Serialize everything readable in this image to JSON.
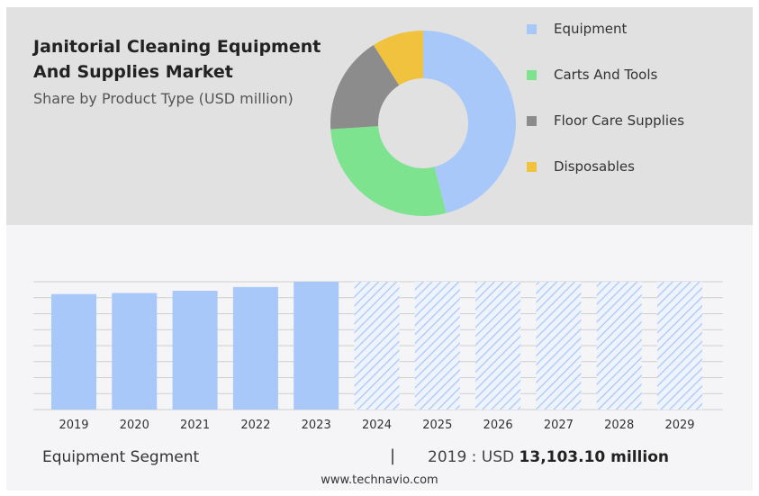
{
  "header": {
    "title": "Janitorial Cleaning Equipment And Supplies Market",
    "subtitle": "Share by Product Type (USD million)"
  },
  "legend": [
    {
      "label": "Equipment",
      "color": "#a8c8fa"
    },
    {
      "label": "Carts And Tools",
      "color": "#7de38f"
    },
    {
      "label": "Floor Care Supplies",
      "color": "#8c8c8c"
    },
    {
      "label": "Disposables",
      "color": "#f0c23e"
    }
  ],
  "footer": {
    "segment": "Equipment Segment",
    "separator": "|",
    "prefix": "2019 : USD",
    "value": "13,103.10 million"
  },
  "website": "www.technavio.com",
  "chart_data": [
    {
      "type": "pie",
      "categories": [
        "Equipment",
        "Carts And Tools",
        "Floor Care Supplies",
        "Disposables"
      ],
      "values": [
        46,
        28,
        17,
        9
      ],
      "colors": [
        "#a8c8fa",
        "#7de38f",
        "#8c8c8c",
        "#f0c23e"
      ]
    },
    {
      "type": "bar",
      "categories": [
        "2019",
        "2020",
        "2021",
        "2022",
        "2023",
        "2024",
        "2025",
        "2026",
        "2027",
        "2028",
        "2029"
      ],
      "values": [
        13103.1,
        13220,
        13480,
        13900,
        14500,
        14500,
        14500,
        14500,
        14500,
        14500,
        14500
      ],
      "forecast_from": "2024",
      "ylim": [
        0,
        14500
      ],
      "grid": true,
      "color": "#a8c8fa"
    }
  ]
}
